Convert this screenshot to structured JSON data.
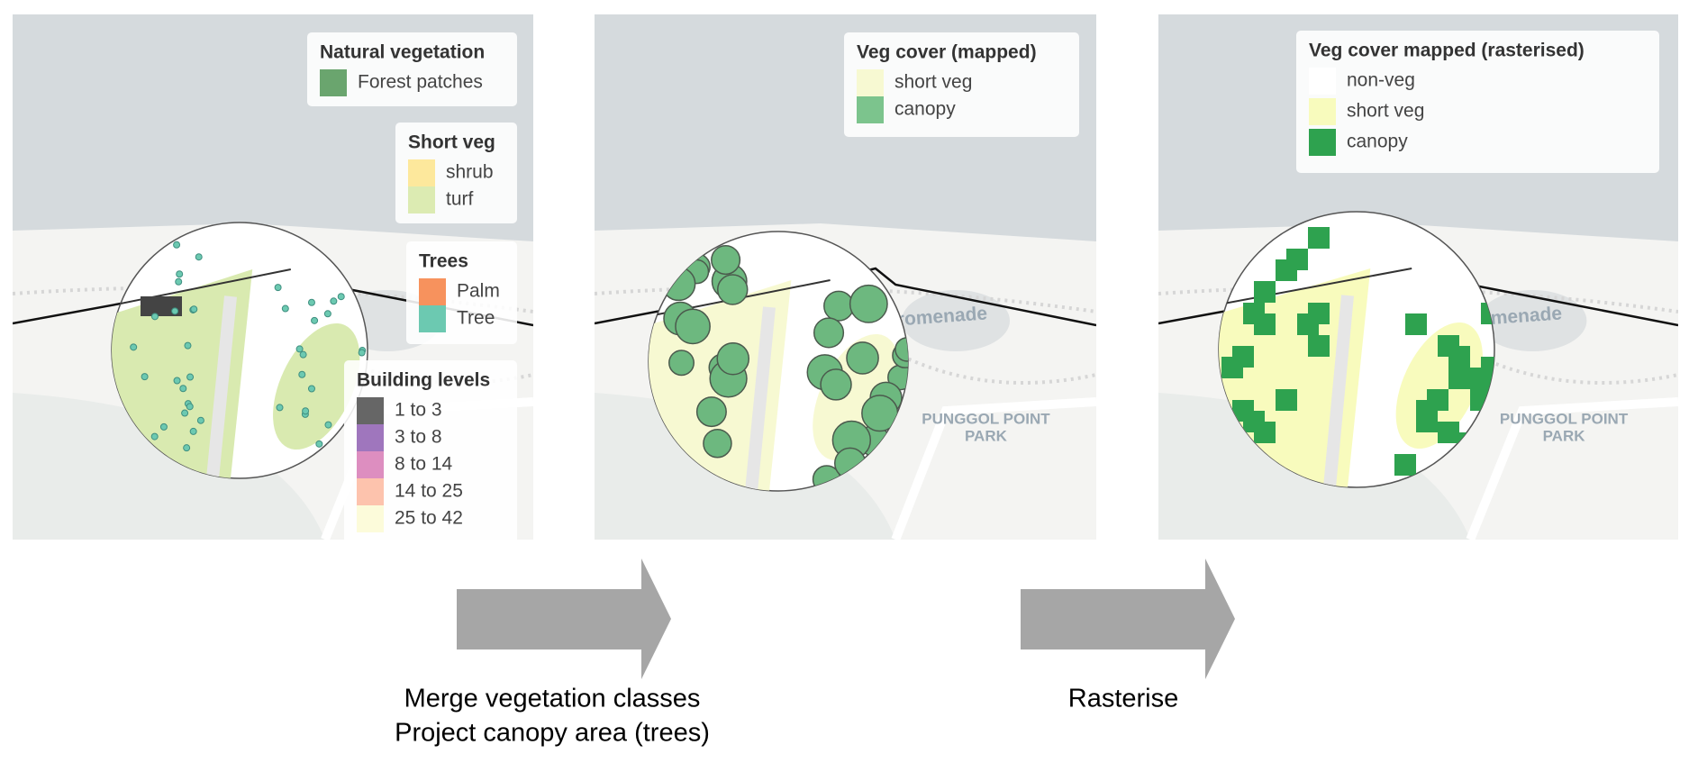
{
  "panels": [
    {
      "legends": [
        {
          "title": "Natural vegetation",
          "items": [
            {
              "label": "Forest patches",
              "color": "#6aa56e"
            }
          ]
        },
        {
          "title": "Short veg",
          "items": [
            {
              "label": "shrub",
              "color": "#fde89c"
            },
            {
              "label": "turf",
              "color": "#dcebb2"
            }
          ]
        },
        {
          "title": "Trees",
          "items": [
            {
              "label": "Palm",
              "color": "#f7925d"
            },
            {
              "label": "Tree",
              "color": "#6cc9b1"
            }
          ]
        },
        {
          "title": "Building levels",
          "items": [
            {
              "label": "1 to 3",
              "color": "#666666"
            },
            {
              "label": "3 to 8",
              "color": "#9f76bd"
            },
            {
              "label": "8 to 14",
              "color": "#dd8ec0"
            },
            {
              "label": "14 to 25",
              "color": "#fdc3ad"
            },
            {
              "label": "25 to 42",
              "color": "#fcfbda"
            }
          ]
        }
      ],
      "map_labels": []
    },
    {
      "legends": [
        {
          "title": "Veg cover (mapped)",
          "items": [
            {
              "label": "short veg",
              "color": "#f7f9d2"
            },
            {
              "label": "canopy",
              "color": "#7cc48d"
            }
          ]
        }
      ],
      "map_labels": [
        "Punggol Promenade",
        "PUNGGOL POINT",
        "PARK"
      ]
    },
    {
      "legends": [
        {
          "title": "Veg cover mapped (rasterised)",
          "items": [
            {
              "label": "non-veg",
              "color": "#ffffff"
            },
            {
              "label": "short veg",
              "color": "#f8fbbd"
            },
            {
              "label": "canopy",
              "color": "#2ea24f"
            }
          ]
        }
      ],
      "map_labels": [
        "Punggol Promenade",
        "PUNGGOL POINT",
        "PARK"
      ]
    }
  ],
  "arrows": [
    {
      "lines": [
        "Merge vegetation classes",
        "Project canopy area (trees)"
      ]
    },
    {
      "lines": [
        "Rasterise"
      ]
    }
  ]
}
